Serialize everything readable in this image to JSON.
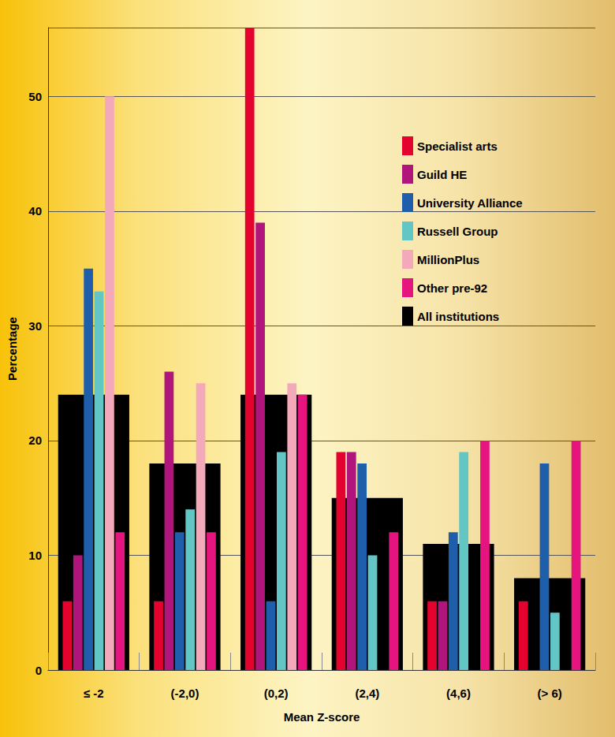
{
  "chart_data": {
    "type": "bar",
    "xlabel": "Mean Z-score",
    "ylabel": "Percentage",
    "categories": [
      "≤ -2",
      "(-2,0)",
      "(0,2)",
      "(2,4)",
      "(4,6)",
      "(> 6)"
    ],
    "series": [
      {
        "name": "Specialist arts",
        "color": "#e4032e",
        "values": [
          6,
          6,
          56,
          19,
          6,
          6
        ]
      },
      {
        "name": "Guild HE",
        "color": "#b0157c",
        "values": [
          10,
          26,
          39,
          19,
          6,
          0
        ]
      },
      {
        "name": "University Alliance",
        "color": "#1f5eab",
        "values": [
          35,
          12,
          6,
          18,
          12,
          18
        ]
      },
      {
        "name": "Russell Group",
        "color": "#62c6c4",
        "values": [
          33,
          14,
          19,
          10,
          19,
          5
        ]
      },
      {
        "name": "MillionPlus",
        "color": "#f4a9bb",
        "values": [
          50,
          25,
          25,
          0,
          0,
          0
        ]
      },
      {
        "name": "Other pre-92",
        "color": "#e6147e",
        "values": [
          12,
          12,
          24,
          12,
          20,
          20
        ]
      },
      {
        "name": "All institutions",
        "color": "#000000",
        "values": [
          24,
          18,
          24,
          15,
          11,
          8
        ]
      }
    ],
    "ylim": [
      0,
      56
    ],
    "yticks": [
      0,
      10,
      20,
      30,
      40,
      50
    ],
    "grid": true,
    "legend": "upper right"
  }
}
